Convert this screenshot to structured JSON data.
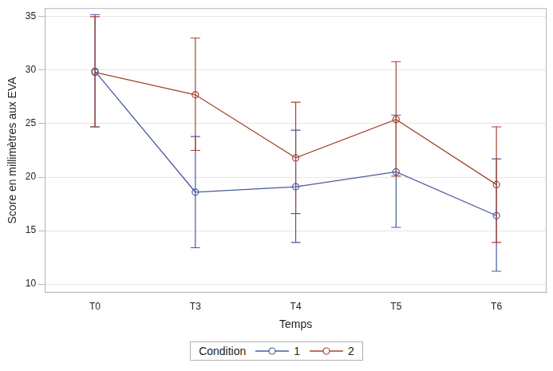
{
  "chart_data": {
    "type": "line",
    "x_label": "Temps",
    "y_label": "Score en millimètres aux EVA",
    "categories": [
      "T0",
      "T3",
      "T4",
      "T5",
      "T6"
    ],
    "series": [
      {
        "name": "1",
        "color": "#4a5a9c",
        "marker": "circle",
        "values": [
          29.9,
          18.6,
          19.1,
          20.5,
          16.4
        ],
        "lower": [
          24.7,
          13.4,
          13.9,
          15.3,
          11.2
        ],
        "upper": [
          35.2,
          23.8,
          24.4,
          25.8,
          21.7
        ]
      },
      {
        "name": "2",
        "color": "#a5452f",
        "marker": "circle",
        "values": [
          29.8,
          27.7,
          21.8,
          25.4,
          19.3
        ],
        "lower": [
          24.7,
          22.5,
          16.6,
          20.1,
          13.9
        ],
        "upper": [
          35.0,
          33.0,
          27.0,
          30.8,
          24.7
        ]
      }
    ],
    "ylim": [
      9.2,
      35.8
    ],
    "yticks": [
      10,
      15,
      20,
      25,
      30,
      35
    ],
    "grid": true,
    "legend": "bottom",
    "legend_title": "Condition"
  }
}
